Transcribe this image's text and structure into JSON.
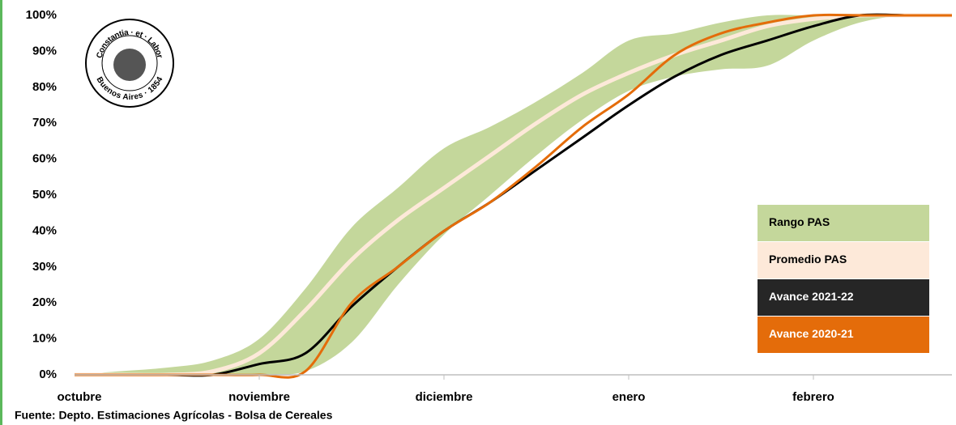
{
  "chart_data": {
    "type": "line",
    "categories": [
      "octubre",
      null,
      null,
      null,
      "noviembre",
      null,
      null,
      null,
      "diciembre",
      null,
      null,
      null,
      "enero",
      null,
      null,
      null,
      "febrero",
      null,
      null,
      null
    ],
    "series": [
      {
        "name": "Rango PAS",
        "color": "#c4d79b",
        "kind": "range",
        "low": [
          0,
          0,
          0,
          0,
          0,
          1,
          9,
          25,
          39,
          50,
          61,
          71,
          79,
          83,
          85,
          86,
          93,
          98,
          100,
          100
        ],
        "high": [
          0,
          1,
          2,
          4,
          10,
          24,
          41,
          52,
          63,
          69,
          76,
          84,
          93,
          95,
          98,
          100,
          100,
          100,
          100,
          100
        ]
      },
      {
        "name": "Promedio PAS",
        "color": "#fde9d9",
        "values": [
          0,
          0,
          0,
          1,
          6,
          18,
          32,
          43,
          52,
          61,
          70,
          78,
          84,
          89,
          93,
          97,
          99,
          100,
          100,
          100
        ]
      },
      {
        "name": "Avance 2021-22",
        "color": "#000000",
        "values": [
          0,
          0,
          0,
          0,
          3,
          6,
          19,
          30,
          40,
          48,
          57,
          66,
          75,
          83,
          89,
          93,
          97,
          100,
          100,
          null
        ]
      },
      {
        "name": "Avance 2020-21",
        "color": "#e46c0a",
        "values": [
          0,
          0,
          0,
          0,
          0,
          1,
          20,
          30,
          40,
          48,
          58,
          69,
          78,
          89,
          95,
          98,
          100,
          100,
          100,
          100
        ]
      }
    ],
    "ylim": [
      0,
      100
    ],
    "yticks": [
      {
        "value": 0,
        "label": "0%"
      },
      {
        "value": 10,
        "label": "10%"
      },
      {
        "value": 20,
        "label": "20%"
      },
      {
        "value": 30,
        "label": "30%"
      },
      {
        "value": 40,
        "label": "40%"
      },
      {
        "value": 50,
        "label": "50%"
      },
      {
        "value": 60,
        "label": "60%"
      },
      {
        "value": 70,
        "label": "70%"
      },
      {
        "value": 80,
        "label": "80%"
      },
      {
        "value": 90,
        "label": "90%"
      },
      {
        "value": 100,
        "label": "100%"
      }
    ],
    "grid": false,
    "legend": "lower right",
    "annotations": [
      "Constantia · et · Labor",
      "Buenos Aires · 1854"
    ],
    "source": "Fuente: Depto. Estimaciones Agrícolas - Bolsa de Cereales"
  }
}
